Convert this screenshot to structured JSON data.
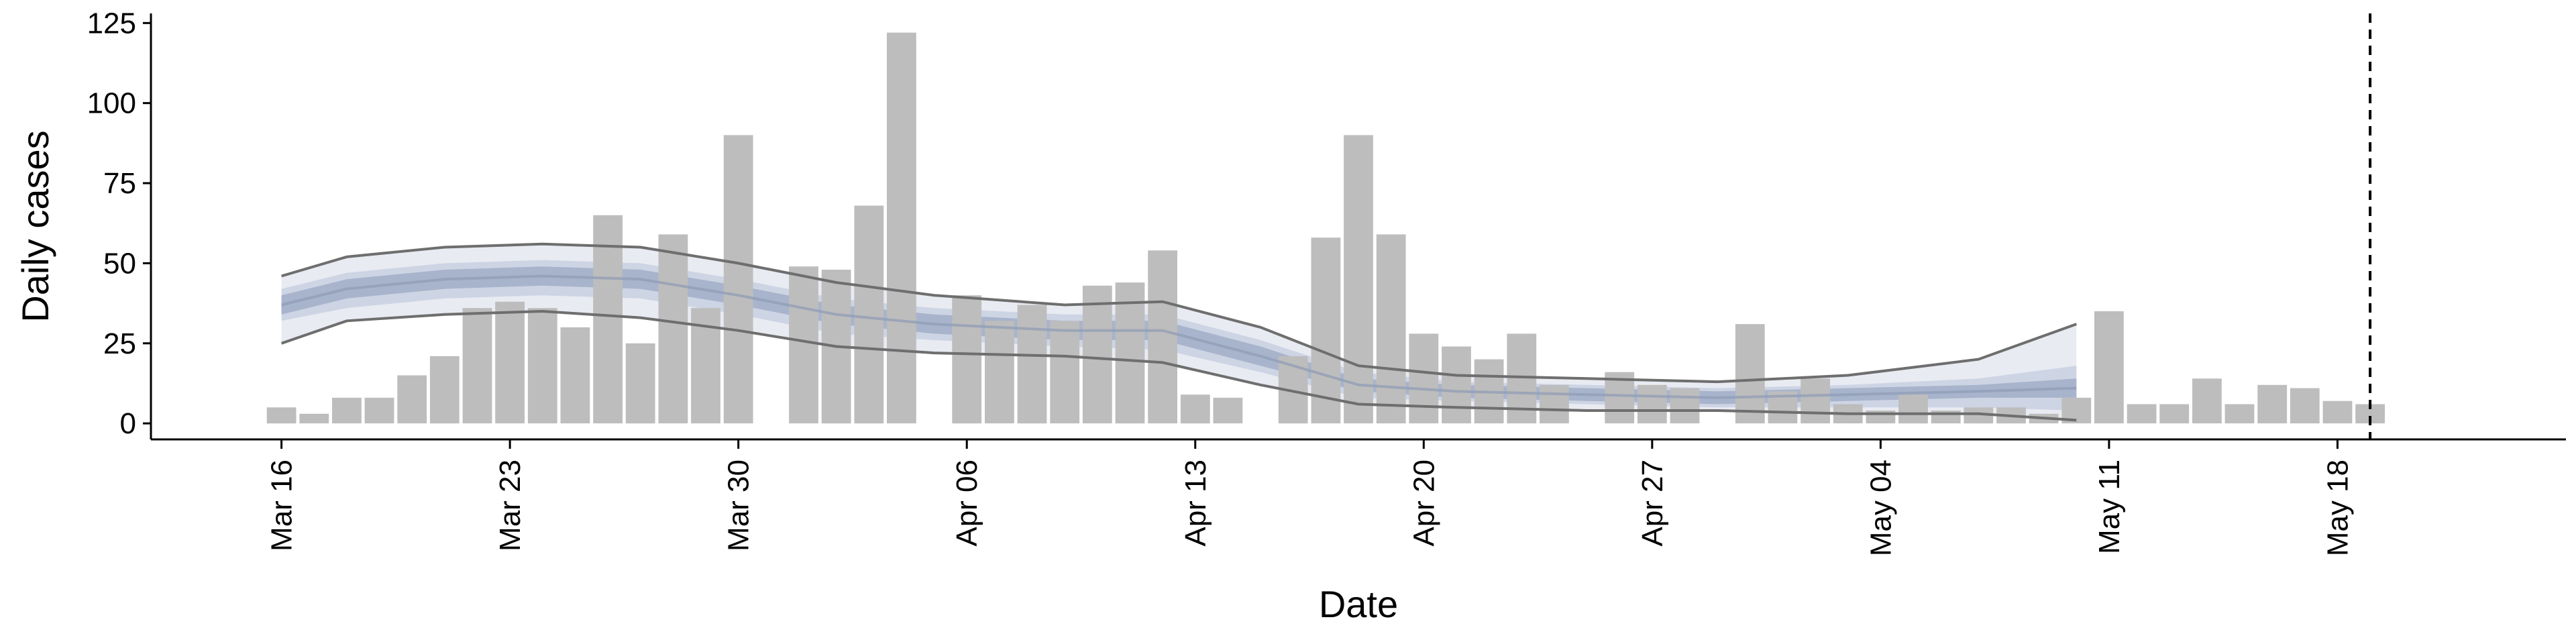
{
  "chart_data": {
    "type": "bar",
    "xlabel": "Date",
    "ylabel": "Daily cases",
    "ylim": [
      -5,
      128
    ],
    "y_ticks": [
      0,
      25,
      50,
      75,
      100,
      125
    ],
    "x_tick_labels": [
      "Mar 16",
      "Mar 23",
      "Mar 30",
      "Apr 06",
      "Apr 13",
      "Apr 20",
      "Apr 27",
      "May 04",
      "May 11",
      "May 18"
    ],
    "x_tick_dates": [
      "2020-03-16",
      "2020-03-23",
      "2020-03-30",
      "2020-04-06",
      "2020-04-13",
      "2020-04-20",
      "2020-04-27",
      "2020-05-04",
      "2020-05-11",
      "2020-05-18"
    ],
    "x_range": [
      "2020-03-12",
      "2020-05-25"
    ],
    "grid": false,
    "dashed_vline_date": "2020-05-19",
    "colors": {
      "bars": "#bdbdbd",
      "inner_band": "#a8b4cc",
      "mid_band": "#cdd4e4",
      "outer_band": "#e9ebf2",
      "median": "#8f9bb5",
      "outer_lines": "#6e6e6e",
      "vline": "#000000"
    },
    "daily_cases": [
      {
        "date": "2020-03-16",
        "value": 5
      },
      {
        "date": "2020-03-17",
        "value": 3
      },
      {
        "date": "2020-03-18",
        "value": 8
      },
      {
        "date": "2020-03-19",
        "value": 8
      },
      {
        "date": "2020-03-20",
        "value": 15
      },
      {
        "date": "2020-03-21",
        "value": 21
      },
      {
        "date": "2020-03-22",
        "value": 36
      },
      {
        "date": "2020-03-23",
        "value": 38
      },
      {
        "date": "2020-03-24",
        "value": 36
      },
      {
        "date": "2020-03-25",
        "value": 30
      },
      {
        "date": "2020-03-26",
        "value": 65
      },
      {
        "date": "2020-03-27",
        "value": 25
      },
      {
        "date": "2020-03-28",
        "value": 59
      },
      {
        "date": "2020-03-29",
        "value": 36
      },
      {
        "date": "2020-03-30",
        "value": 90
      },
      {
        "date": "2020-03-31",
        "value": 0
      },
      {
        "date": "2020-04-01",
        "value": 49
      },
      {
        "date": "2020-04-02",
        "value": 48
      },
      {
        "date": "2020-04-03",
        "value": 68
      },
      {
        "date": "2020-04-04",
        "value": 122
      },
      {
        "date": "2020-04-05",
        "value": 0
      },
      {
        "date": "2020-04-06",
        "value": 40
      },
      {
        "date": "2020-04-07",
        "value": 32
      },
      {
        "date": "2020-04-08",
        "value": 37
      },
      {
        "date": "2020-04-09",
        "value": 32
      },
      {
        "date": "2020-04-10",
        "value": 43
      },
      {
        "date": "2020-04-11",
        "value": 44
      },
      {
        "date": "2020-04-12",
        "value": 54
      },
      {
        "date": "2020-04-13",
        "value": 9
      },
      {
        "date": "2020-04-14",
        "value": 8
      },
      {
        "date": "2020-04-15",
        "value": 0
      },
      {
        "date": "2020-04-16",
        "value": 21
      },
      {
        "date": "2020-04-17",
        "value": 58
      },
      {
        "date": "2020-04-18",
        "value": 90
      },
      {
        "date": "2020-04-19",
        "value": 59
      },
      {
        "date": "2020-04-20",
        "value": 28
      },
      {
        "date": "2020-04-21",
        "value": 24
      },
      {
        "date": "2020-04-22",
        "value": 20
      },
      {
        "date": "2020-04-23",
        "value": 28
      },
      {
        "date": "2020-04-24",
        "value": 12
      },
      {
        "date": "2020-04-25",
        "value": 0
      },
      {
        "date": "2020-04-26",
        "value": 16
      },
      {
        "date": "2020-04-27",
        "value": 12
      },
      {
        "date": "2020-04-28",
        "value": 11
      },
      {
        "date": "2020-04-29",
        "value": 0
      },
      {
        "date": "2020-04-30",
        "value": 31
      },
      {
        "date": "2020-05-01",
        "value": 10
      },
      {
        "date": "2020-05-02",
        "value": 14
      },
      {
        "date": "2020-05-03",
        "value": 6
      },
      {
        "date": "2020-05-04",
        "value": 4
      },
      {
        "date": "2020-05-05",
        "value": 9
      },
      {
        "date": "2020-05-06",
        "value": 4
      },
      {
        "date": "2020-05-07",
        "value": 5
      },
      {
        "date": "2020-05-08",
        "value": 5
      },
      {
        "date": "2020-05-09",
        "value": 3
      },
      {
        "date": "2020-05-10",
        "value": 8
      },
      {
        "date": "2020-05-11",
        "value": 35
      },
      {
        "date": "2020-05-12",
        "value": 6
      },
      {
        "date": "2020-05-13",
        "value": 6
      },
      {
        "date": "2020-05-14",
        "value": 14
      },
      {
        "date": "2020-05-15",
        "value": 6
      },
      {
        "date": "2020-05-16",
        "value": 12
      },
      {
        "date": "2020-05-17",
        "value": 11
      },
      {
        "date": "2020-05-18",
        "value": 7
      },
      {
        "date": "2020-05-19",
        "value": 6
      }
    ],
    "estimate": [
      {
        "date": "2020-03-16",
        "outer_hi": 46,
        "mid_hi": 42,
        "inner_hi": 40,
        "median": 37,
        "inner_lo": 34,
        "mid_lo": 32,
        "outer_lo": 25
      },
      {
        "date": "2020-03-18",
        "outer_hi": 52,
        "mid_hi": 47,
        "inner_hi": 45,
        "median": 42,
        "inner_lo": 39,
        "mid_lo": 36,
        "outer_lo": 32
      },
      {
        "date": "2020-03-21",
        "outer_hi": 55,
        "mid_hi": 50,
        "inner_hi": 48,
        "median": 45,
        "inner_lo": 42,
        "mid_lo": 39,
        "outer_lo": 34
      },
      {
        "date": "2020-03-24",
        "outer_hi": 56,
        "mid_hi": 51,
        "inner_hi": 49,
        "median": 46,
        "inner_lo": 43,
        "mid_lo": 40,
        "outer_lo": 35
      },
      {
        "date": "2020-03-27",
        "outer_hi": 55,
        "mid_hi": 50,
        "inner_hi": 48,
        "median": 45,
        "inner_lo": 42,
        "mid_lo": 39,
        "outer_lo": 33
      },
      {
        "date": "2020-03-30",
        "outer_hi": 50,
        "mid_hi": 45,
        "inner_hi": 43,
        "median": 40,
        "inner_lo": 37,
        "mid_lo": 34,
        "outer_lo": 29
      },
      {
        "date": "2020-04-02",
        "outer_hi": 44,
        "mid_hi": 39,
        "inner_hi": 37,
        "median": 34,
        "inner_lo": 31,
        "mid_lo": 28,
        "outer_lo": 24
      },
      {
        "date": "2020-04-05",
        "outer_hi": 40,
        "mid_hi": 36,
        "inner_hi": 34,
        "median": 31,
        "inner_lo": 28,
        "mid_lo": 26,
        "outer_lo": 22
      },
      {
        "date": "2020-04-09",
        "outer_hi": 37,
        "mid_hi": 34,
        "inner_hi": 32,
        "median": 29,
        "inner_lo": 26,
        "mid_lo": 24,
        "outer_lo": 21
      },
      {
        "date": "2020-04-12",
        "outer_hi": 38,
        "mid_hi": 34,
        "inner_hi": 32,
        "median": 29,
        "inner_lo": 26,
        "mid_lo": 23,
        "outer_lo": 19
      },
      {
        "date": "2020-04-15",
        "outer_hi": 30,
        "mid_hi": 26,
        "inner_hi": 24,
        "median": 21,
        "inner_lo": 18,
        "mid_lo": 16,
        "outer_lo": 12
      },
      {
        "date": "2020-04-18",
        "outer_hi": 18,
        "mid_hi": 16,
        "inner_hi": 14,
        "median": 12,
        "inner_lo": 10,
        "mid_lo": 8,
        "outer_lo": 6
      },
      {
        "date": "2020-04-21",
        "outer_hi": 15,
        "mid_hi": 13,
        "inner_hi": 12,
        "median": 10,
        "inner_lo": 8,
        "mid_lo": 7,
        "outer_lo": 5
      },
      {
        "date": "2020-04-25",
        "outer_hi": 14,
        "mid_hi": 12,
        "inner_hi": 11,
        "median": 9,
        "inner_lo": 7,
        "mid_lo": 6,
        "outer_lo": 4
      },
      {
        "date": "2020-04-29",
        "outer_hi": 13,
        "mid_hi": 11,
        "inner_hi": 10,
        "median": 8,
        "inner_lo": 6,
        "mid_lo": 5,
        "outer_lo": 4
      },
      {
        "date": "2020-05-03",
        "outer_hi": 15,
        "mid_hi": 12,
        "inner_hi": 11,
        "median": 9,
        "inner_lo": 7,
        "mid_lo": 5,
        "outer_lo": 3
      },
      {
        "date": "2020-05-07",
        "outer_hi": 20,
        "mid_hi": 14,
        "inner_hi": 12,
        "median": 10,
        "inner_lo": 8,
        "mid_lo": 5,
        "outer_lo": 3
      },
      {
        "date": "2020-05-10",
        "outer_hi": 31,
        "mid_hi": 18,
        "inner_hi": 14,
        "median": 11,
        "inner_lo": 8,
        "mid_lo": 4,
        "outer_lo": 1
      }
    ]
  }
}
